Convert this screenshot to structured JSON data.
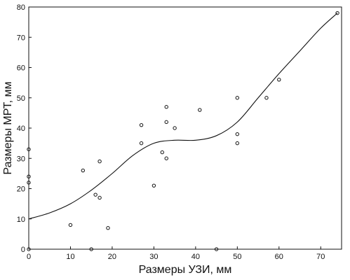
{
  "chart_data": {
    "type": "scatter",
    "title": "",
    "xlabel": "Размеры УЗИ, мм",
    "ylabel": "Размеры МРТ, мм",
    "xlim": [
      0,
      75
    ],
    "ylim": [
      0,
      80
    ],
    "xticks": [
      0,
      10,
      20,
      30,
      40,
      50,
      60,
      70
    ],
    "yticks": [
      0,
      10,
      20,
      30,
      40,
      50,
      60,
      70,
      80
    ],
    "grid": false,
    "legend": "none",
    "colors": {
      "axis": "#111111",
      "points": "#111111",
      "curve": "#111111"
    },
    "series": [
      {
        "kind": "points",
        "marker": "open-circle",
        "x": [
          0,
          0,
          0,
          0,
          10,
          13,
          15,
          16,
          17,
          17,
          19,
          27,
          27,
          30,
          32,
          33,
          33,
          33,
          35,
          41,
          45,
          50,
          50,
          50,
          57,
          60,
          74
        ],
        "y": [
          33,
          24,
          22,
          0,
          8,
          26,
          0,
          18,
          29,
          17,
          7,
          41,
          35,
          21,
          32,
          47,
          42,
          30,
          40,
          46,
          0,
          50,
          38,
          35,
          50,
          56,
          78
        ]
      },
      {
        "kind": "fitted-curve",
        "x": [
          0,
          5,
          10,
          15,
          20,
          25,
          30,
          35,
          40,
          45,
          50,
          55,
          60,
          65,
          70,
          74
        ],
        "y": [
          10,
          12,
          15,
          19.5,
          25,
          31,
          35,
          36,
          36,
          37.5,
          42,
          50,
          58,
          65.5,
          73,
          78
        ]
      }
    ]
  }
}
